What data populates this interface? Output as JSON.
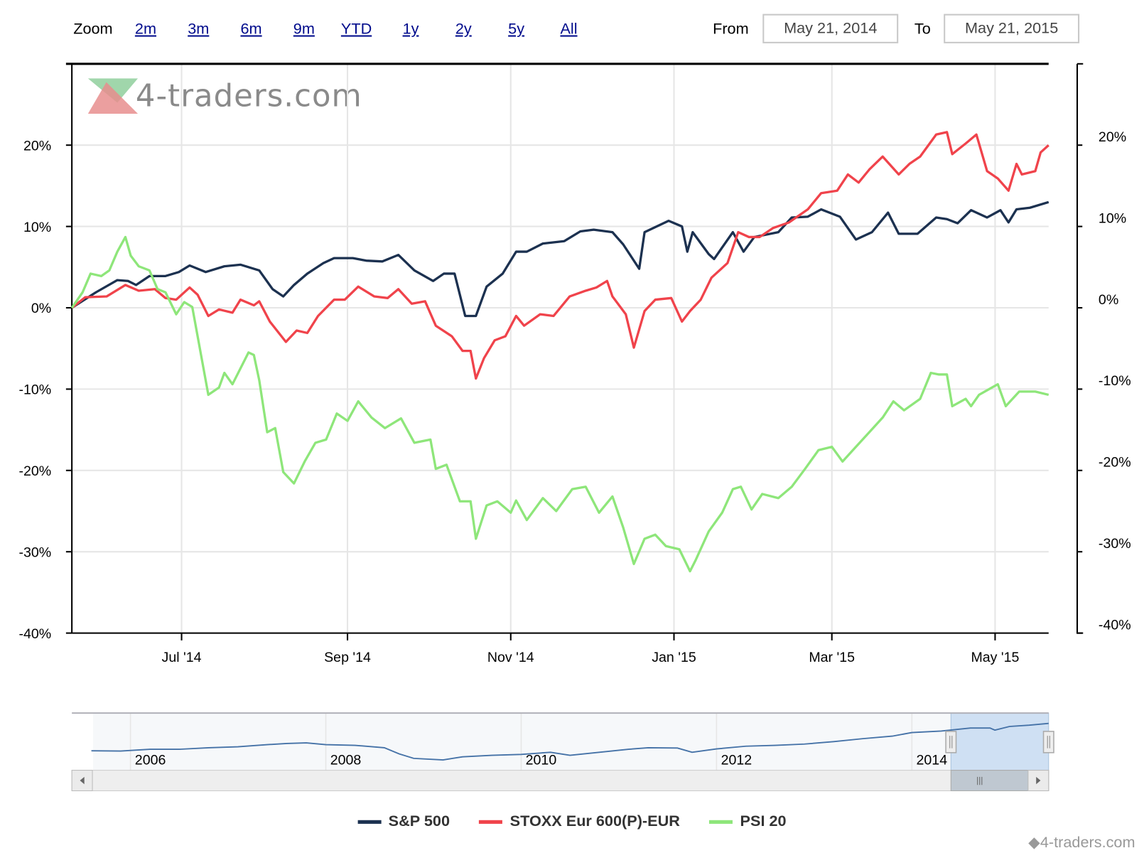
{
  "toolbar": {
    "zoom_label": "Zoom",
    "zoom_buttons": [
      "2m",
      "3m",
      "6m",
      "9m",
      "YTD",
      "1y",
      "2y",
      "5y",
      "All"
    ],
    "from_label": "From",
    "from_value": "May 21, 2014",
    "to_label": "To",
    "to_value": "May 21, 2015"
  },
  "watermark": "4-traders.com",
  "credit": "4-traders.com",
  "chart_data": {
    "type": "line",
    "title": "",
    "xlabel": "",
    "ylabel": "",
    "x_unit": "days since May 21, 2014",
    "xlim": [
      0,
      365
    ],
    "ylim": [
      -40,
      30
    ],
    "y_ticks": [
      -40,
      -30,
      -20,
      -10,
      0,
      10,
      20
    ],
    "y_tick_labels": [
      "-40%",
      "-30%",
      "-20%",
      "-10%",
      "0%",
      "10%",
      "20%"
    ],
    "x_ticks": [
      41,
      103,
      164,
      225,
      284,
      345
    ],
    "x_tick_labels": [
      "Jul '14",
      "Sep '14",
      "Nov '14",
      "Jan '15",
      "Mar '15",
      "May '15"
    ],
    "grid": true,
    "legend_position": "bottom",
    "series": [
      {
        "name": "S&P 500",
        "color": "#1c3150",
        "x": [
          0,
          9,
          17,
          21,
          24,
          29,
          35,
          40,
          44,
          50,
          57,
          63,
          70,
          75,
          79,
          83,
          88,
          94,
          98,
          105,
          110,
          116,
          122,
          128,
          135,
          139,
          143,
          147,
          151,
          155,
          161,
          166,
          170,
          176,
          184,
          190,
          195,
          202,
          206,
          212,
          214,
          223,
          228,
          230,
          232,
          238,
          240,
          247,
          251,
          255,
          264,
          269,
          275,
          280,
          287,
          293,
          299,
          305,
          309,
          316,
          323,
          327,
          331,
          336,
          342,
          347,
          350,
          353,
          358,
          365
        ],
        "y": [
          0,
          1.9,
          3.4,
          3.3,
          2.8,
          3.9,
          3.9,
          4.4,
          5.2,
          4.4,
          5.1,
          5.3,
          4.6,
          2.3,
          1.4,
          2.8,
          4.2,
          5.5,
          6.1,
          6.1,
          5.8,
          5.7,
          6.5,
          4.6,
          3.3,
          4.2,
          4.2,
          -1.0,
          -1.0,
          2.6,
          4.2,
          6.9,
          6.9,
          7.9,
          8.2,
          9.4,
          9.6,
          9.3,
          7.8,
          4.8,
          9.3,
          10.7,
          10.0,
          6.9,
          9.3,
          6.6,
          6.0,
          9.3,
          6.9,
          8.7,
          9.3,
          11.1,
          11.2,
          12.1,
          11.2,
          8.4,
          9.3,
          11.7,
          9.1,
          9.1,
          11.1,
          10.9,
          10.4,
          12.0,
          11.1,
          12.0,
          10.5,
          12.1,
          12.3,
          13.0
        ]
      },
      {
        "name": "STOXX Eur 600(P)-EUR",
        "color": "#f0434b",
        "x": [
          0,
          5,
          13,
          20,
          25,
          31,
          35,
          39,
          44,
          47,
          51,
          55,
          60,
          63,
          68,
          70,
          74,
          80,
          84,
          88,
          92,
          98,
          102,
          107,
          113,
          118,
          122,
          127,
          132,
          136,
          142,
          146,
          149,
          151,
          154,
          158,
          162,
          166,
          169,
          175,
          180,
          186,
          192,
          196,
          200,
          202,
          207,
          210,
          214,
          218,
          224,
          228,
          231,
          235,
          239,
          245,
          249,
          253,
          257,
          262,
          268,
          275,
          280,
          286,
          290,
          294,
          298,
          303,
          309,
          313,
          317,
          323,
          327,
          329,
          334,
          338,
          342,
          346,
          350,
          353,
          355,
          360,
          362,
          365
        ],
        "y": [
          0,
          1.3,
          1.4,
          2.8,
          2.1,
          2.3,
          1.2,
          1.0,
          2.5,
          1.6,
          -1.0,
          -0.2,
          -0.6,
          1.0,
          0.3,
          0.8,
          -1.7,
          -4.2,
          -2.8,
          -3.1,
          -1.0,
          1.0,
          1.0,
          2.6,
          1.4,
          1.2,
          2.3,
          0.5,
          0.8,
          -2.2,
          -3.5,
          -5.3,
          -5.3,
          -8.7,
          -6.2,
          -4.0,
          -3.5,
          -1.0,
          -2.2,
          -0.8,
          -1.0,
          1.4,
          2.1,
          2.5,
          3.3,
          1.4,
          -0.8,
          -4.9,
          -0.4,
          1.0,
          1.2,
          -1.7,
          -0.4,
          1.0,
          3.7,
          5.5,
          9.3,
          8.7,
          8.7,
          9.8,
          10.5,
          12.1,
          14.1,
          14.4,
          16.4,
          15.4,
          17.0,
          18.6,
          16.4,
          17.7,
          18.6,
          21.3,
          21.6,
          18.9,
          20.2,
          21.3,
          16.8,
          15.9,
          14.4,
          17.7,
          16.4,
          16.8,
          19.1,
          20.0
        ]
      },
      {
        "name": "PSI 20",
        "color": "#8ee67a",
        "x": [
          0,
          4,
          7,
          11,
          14,
          17,
          20,
          22,
          25,
          29,
          32,
          35,
          39,
          42,
          45,
          47,
          51,
          55,
          57,
          60,
          66,
          68,
          70,
          73,
          76,
          79,
          83,
          87,
          91,
          95,
          99,
          103,
          107,
          112,
          117,
          123,
          128,
          134,
          136,
          140,
          145,
          149,
          151,
          155,
          159,
          164,
          166,
          170,
          176,
          181,
          187,
          192,
          197,
          202,
          206,
          210,
          214,
          218,
          222,
          227,
          231,
          233,
          238,
          243,
          247,
          250,
          254,
          258,
          264,
          269,
          274,
          279,
          284,
          288,
          293,
          298,
          303,
          307,
          311,
          317,
          321,
          324,
          327,
          329,
          334,
          336,
          339,
          346,
          349,
          354,
          360,
          365
        ],
        "y": [
          0,
          1.9,
          4.2,
          3.9,
          4.6,
          6.9,
          8.7,
          6.4,
          5.1,
          4.6,
          2.3,
          1.9,
          -0.8,
          0.7,
          0.1,
          -3.5,
          -10.7,
          -9.8,
          -8.0,
          -9.4,
          -5.5,
          -5.8,
          -8.9,
          -15.3,
          -14.8,
          -20.2,
          -21.6,
          -18.9,
          -16.6,
          -16.2,
          -13.0,
          -13.9,
          -11.5,
          -13.5,
          -14.8,
          -13.6,
          -16.6,
          -16.2,
          -19.8,
          -19.3,
          -23.8,
          -23.8,
          -28.4,
          -24.3,
          -23.8,
          -25.2,
          -23.7,
          -26.1,
          -23.4,
          -25.0,
          -22.3,
          -22.0,
          -25.2,
          -23.2,
          -27.0,
          -31.5,
          -28.4,
          -27.9,
          -29.3,
          -29.7,
          -32.4,
          -31.1,
          -27.5,
          -25.2,
          -22.3,
          -22.0,
          -24.8,
          -22.9,
          -23.4,
          -22.0,
          -19.8,
          -17.5,
          -17.1,
          -18.9,
          -17.1,
          -15.3,
          -13.5,
          -11.5,
          -12.6,
          -11.2,
          -8.0,
          -8.2,
          -8.2,
          -12.1,
          -11.2,
          -12.1,
          -10.7,
          -9.4,
          -12.1,
          -10.3,
          -10.3,
          -10.7
        ]
      }
    ],
    "navigator": {
      "x_tick_labels": [
        "2006",
        "2008",
        "2010",
        "2012",
        "2014"
      ],
      "x_ticks": [
        2006,
        2008,
        2010,
        2012,
        2014
      ],
      "xlim": [
        2005.4,
        2015.4
      ],
      "selected_range": [
        2014.4,
        2015.4
      ],
      "series": {
        "x": [
          2005.6,
          2005.9,
          2006.2,
          2006.5,
          2006.8,
          2007.1,
          2007.4,
          2007.6,
          2007.8,
          2008.0,
          2008.3,
          2008.6,
          2008.75,
          2008.9,
          2009.2,
          2009.4,
          2009.7,
          2010.0,
          2010.3,
          2010.5,
          2010.8,
          2011.1,
          2011.3,
          2011.6,
          2011.75,
          2012.0,
          2012.3,
          2012.6,
          2012.9,
          2013.2,
          2013.5,
          2013.8,
          2014.0,
          2014.3,
          2014.6,
          2014.8,
          2014.85,
          2015.0,
          2015.2,
          2015.4
        ],
        "y": [
          1200,
          1190,
          1250,
          1250,
          1300,
          1330,
          1400,
          1440,
          1460,
          1400,
          1380,
          1300,
          1100,
          950,
          900,
          1000,
          1050,
          1080,
          1150,
          1050,
          1150,
          1250,
          1300,
          1290,
          1150,
          1260,
          1350,
          1380,
          1420,
          1500,
          1600,
          1680,
          1800,
          1850,
          1950,
          1950,
          1880,
          2000,
          2040,
          2100
        ]
      }
    }
  }
}
